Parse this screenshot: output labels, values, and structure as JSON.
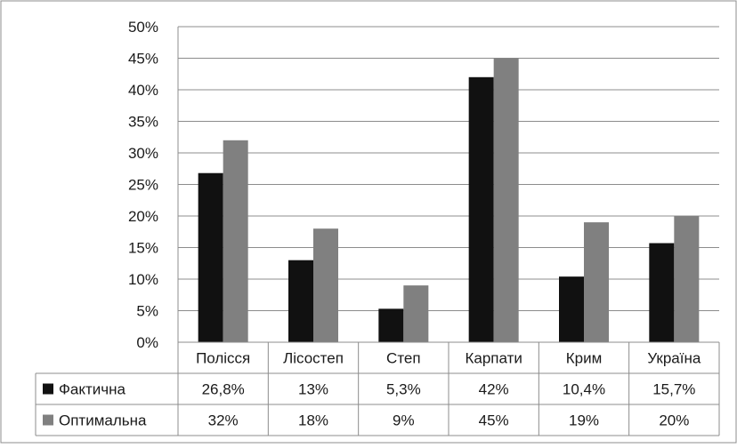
{
  "chart_data": {
    "type": "bar",
    "categories": [
      "Полісся",
      "Лісостеп",
      "Степ",
      "Карпати",
      "Крим",
      "Україна"
    ],
    "series": [
      {
        "name": "Фактична",
        "values": [
          26.8,
          13,
          5.3,
          42,
          10.4,
          15.7
        ],
        "labels": [
          "26,8%",
          "13%",
          "5,3%",
          "42%",
          "10,4%",
          "15,7%"
        ],
        "color": "#111111"
      },
      {
        "name": "Оптимальна",
        "values": [
          32,
          18,
          9,
          45,
          19,
          20
        ],
        "labels": [
          "32%",
          "18%",
          "9%",
          "45%",
          "19%",
          "20%"
        ],
        "color": "#808080"
      }
    ],
    "y_ticks": [
      "0%",
      "5%",
      "10%",
      "15%",
      "20%",
      "25%",
      "30%",
      "35%",
      "40%",
      "45%",
      "50%"
    ],
    "ylim": [
      0,
      50
    ],
    "grid": true,
    "legend": "data-table"
  }
}
